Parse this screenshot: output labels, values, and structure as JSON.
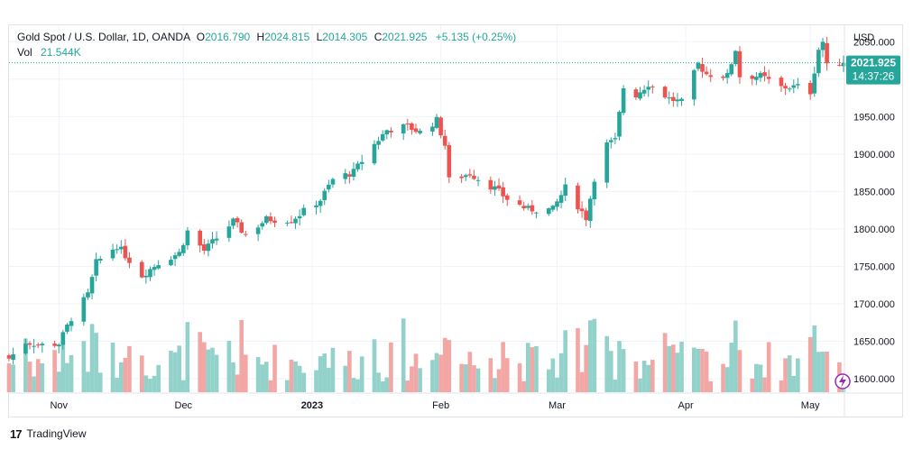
{
  "header": {
    "symbol_title": "Gold Spot / U.S. Dollar, 1D, OANDA",
    "open_label": "O",
    "open_value": "2016.790",
    "high_label": "H",
    "high_value": "2024.815",
    "low_label": "L",
    "low_value": "2014.305",
    "close_label": "C",
    "close_value": "2021.925",
    "change_text": "+5.135 (+0.25%)",
    "vol_label": "Vol",
    "vol_value": "21.544K"
  },
  "price_axis": {
    "currency": "USD"
  },
  "last_price": {
    "price": "2021.925",
    "countdown": "14:37:26"
  },
  "footer": {
    "brand": "TradingView",
    "brand_mark": "17"
  },
  "colors": {
    "up": "#26a69a",
    "down": "#ef5350",
    "up_vol": "#93d2cb",
    "down_vol": "#f3a7a5",
    "grid": "#f0f3fa"
  },
  "chart_data": {
    "type": "candlestick",
    "title": "Gold Spot / U.S. Dollar, 1D, OANDA",
    "x_range": [
      "2022-10-20",
      "2023-05-09"
    ],
    "x_ticks": [
      {
        "label": "Nov",
        "date": "2022-11-01"
      },
      {
        "label": "Dec",
        "date": "2022-12-01"
      },
      {
        "label": "2023",
        "date": "2023-01-01"
      },
      {
        "label": "Feb",
        "date": "2023-02-01"
      },
      {
        "label": "Mar",
        "date": "2023-03-01"
      },
      {
        "label": "Apr",
        "date": "2023-04-01"
      },
      {
        "label": "May",
        "date": "2023-05-01"
      }
    ],
    "y_ticks": [
      "1600.000",
      "1650.000",
      "1700.000",
      "1750.000",
      "1800.000",
      "1850.000",
      "1900.000",
      "1950.000",
      "2000.000",
      "2050.000"
    ],
    "ylim": [
      1582,
      2072
    ],
    "grid": true,
    "last_price": 2021.925,
    "close_series": [
      {
        "date": "2022-10-20",
        "close": 1627
      },
      {
        "date": "2022-10-24",
        "close": 1649
      },
      {
        "date": "2022-10-28",
        "close": 1645
      },
      {
        "date": "2022-11-01",
        "close": 1647
      },
      {
        "date": "2022-11-04",
        "close": 1681
      },
      {
        "date": "2022-11-08",
        "close": 1712
      },
      {
        "date": "2022-11-10",
        "close": 1755
      },
      {
        "date": "2022-11-15",
        "close": 1778
      },
      {
        "date": "2022-11-21",
        "close": 1738
      },
      {
        "date": "2022-11-25",
        "close": 1755
      },
      {
        "date": "2022-11-30",
        "close": 1768
      },
      {
        "date": "2022-12-02",
        "close": 1797
      },
      {
        "date": "2022-12-06",
        "close": 1771
      },
      {
        "date": "2022-12-13",
        "close": 1810
      },
      {
        "date": "2022-12-16",
        "close": 1792
      },
      {
        "date": "2022-12-21",
        "close": 1813
      },
      {
        "date": "2022-12-27",
        "close": 1812
      },
      {
        "date": "2023-01-03",
        "close": 1839
      },
      {
        "date": "2023-01-06",
        "close": 1866
      },
      {
        "date": "2023-01-11",
        "close": 1876
      },
      {
        "date": "2023-01-16",
        "close": 1913
      },
      {
        "date": "2023-01-19",
        "close": 1932
      },
      {
        "date": "2023-01-24",
        "close": 1937
      },
      {
        "date": "2023-01-27",
        "close": 1929
      },
      {
        "date": "2023-01-31",
        "close": 1945
      },
      {
        "date": "2023-02-02",
        "close": 1912
      },
      {
        "date": "2023-02-03",
        "close": 1865
      },
      {
        "date": "2023-02-08",
        "close": 1874
      },
      {
        "date": "2023-02-14",
        "close": 1854
      },
      {
        "date": "2023-02-17",
        "close": 1840
      },
      {
        "date": "2023-02-22",
        "close": 1826
      },
      {
        "date": "2023-02-28",
        "close": 1826
      },
      {
        "date": "2023-03-03",
        "close": 1855
      },
      {
        "date": "2023-03-08",
        "close": 1815
      },
      {
        "date": "2023-03-10",
        "close": 1868
      },
      {
        "date": "2023-03-13",
        "close": 1913
      },
      {
        "date": "2023-03-15",
        "close": 1918
      },
      {
        "date": "2023-03-17",
        "close": 1989
      },
      {
        "date": "2023-03-20",
        "close": 1979
      },
      {
        "date": "2023-03-23",
        "close": 1994
      },
      {
        "date": "2023-03-28",
        "close": 1974
      },
      {
        "date": "2023-03-31",
        "close": 1969
      },
      {
        "date": "2023-04-04",
        "close": 2020
      },
      {
        "date": "2023-04-06",
        "close": 2007
      },
      {
        "date": "2023-04-11",
        "close": 2004
      },
      {
        "date": "2023-04-13",
        "close": 2040
      },
      {
        "date": "2023-04-14",
        "close": 2004
      },
      {
        "date": "2023-04-19",
        "close": 2004
      },
      {
        "date": "2023-04-24",
        "close": 1989
      },
      {
        "date": "2023-04-28",
        "close": 1990
      },
      {
        "date": "2023-05-01",
        "close": 1983
      },
      {
        "date": "2023-05-03",
        "close": 2040
      },
      {
        "date": "2023-05-04",
        "close": 2050
      },
      {
        "date": "2023-05-05",
        "close": 2016.79
      },
      {
        "date": "2023-05-08",
        "close": 2021.925
      }
    ],
    "volume": {
      "label": "Vol",
      "last": "21.544K"
    }
  }
}
